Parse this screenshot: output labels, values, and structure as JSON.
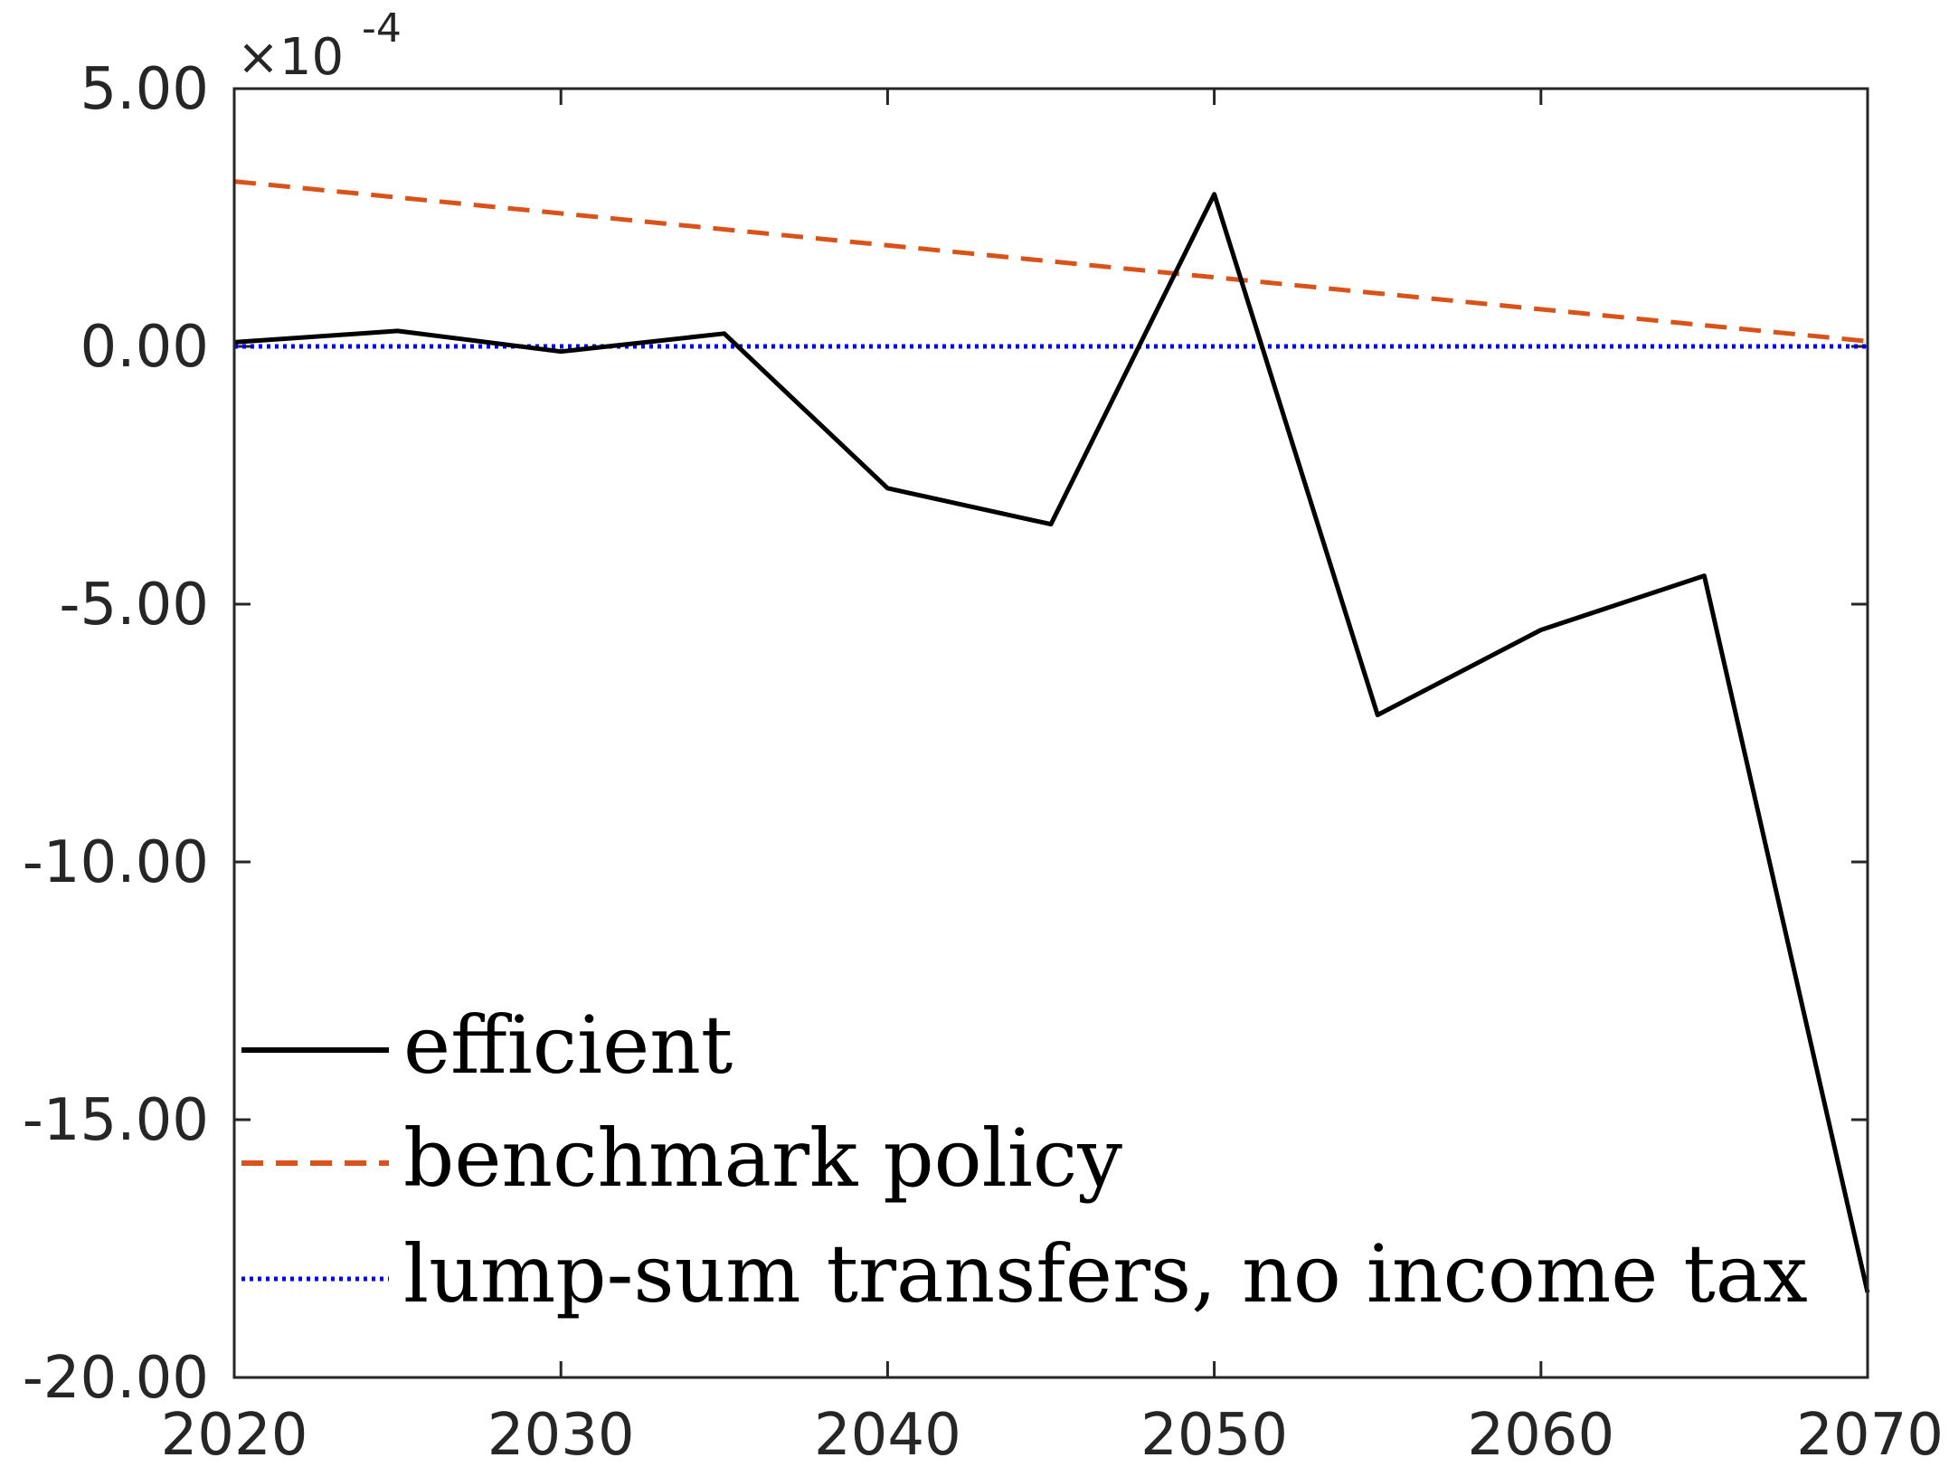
{
  "chart_data": {
    "type": "line",
    "title": "",
    "xlabel": "",
    "ylabel": "",
    "y_multiplier_label": {
      "times": "×10",
      "exponent": "-4"
    },
    "xlim": [
      2020,
      2070
    ],
    "ylim": [
      -20,
      5
    ],
    "xticks": [
      2020,
      2030,
      2040,
      2050,
      2060,
      2070
    ],
    "yticks": [
      5,
      0,
      -5,
      -10,
      -15,
      -20
    ],
    "xtick_labels": [
      "2020",
      "2030",
      "2040",
      "2050",
      "2060",
      "2070"
    ],
    "ytick_labels": [
      "5.00",
      "0.00",
      "-5.00",
      "-10.00",
      "-15.00",
      "-20.00"
    ],
    "grid": false,
    "legend_position": "bottom-left",
    "series": [
      {
        "name": "efficient",
        "color": "#000000",
        "style": "solid",
        "x": [
          2020,
          2025,
          2030,
          2035,
          2040,
          2045,
          2050,
          2055,
          2060,
          2065,
          2070
        ],
        "y": [
          0.08,
          0.3,
          -0.1,
          0.25,
          -2.75,
          -3.45,
          2.95,
          -7.15,
          -5.5,
          -4.45,
          -18.35
        ]
      },
      {
        "name": "benchmark policy",
        "color": "#D95319",
        "style": "dashed",
        "x": [
          2020,
          2070
        ],
        "y": [
          3.2,
          0.1
        ]
      },
      {
        "name": "lump-sum transfers, no income tax",
        "color": "#0000FF",
        "style": "dotted",
        "x": [
          2020,
          2070
        ],
        "y": [
          0.0,
          0.0
        ]
      }
    ]
  }
}
